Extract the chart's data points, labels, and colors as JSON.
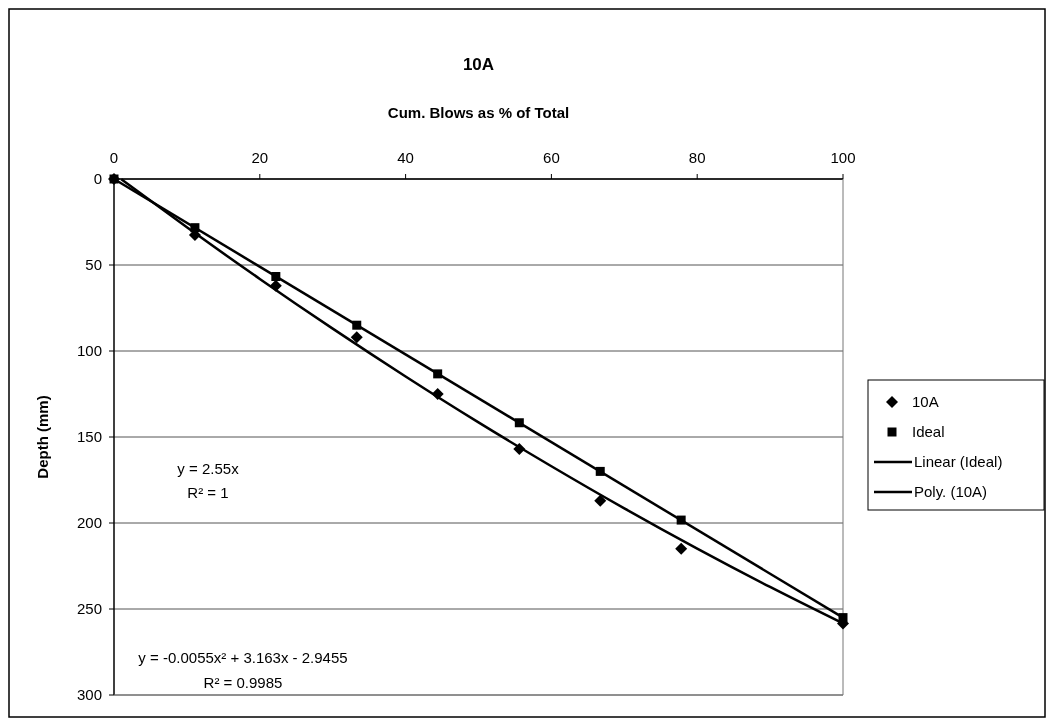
{
  "chart_data": {
    "type": "scatter",
    "title": "10A",
    "xlabel": "Cum. Blows as % of Total",
    "ylabel": "Depth (mm)",
    "xlim": [
      0,
      100
    ],
    "xticks": [
      0,
      20,
      40,
      60,
      80,
      100
    ],
    "ylim": [
      300,
      0
    ],
    "yticks": [
      0,
      50,
      100,
      150,
      200,
      250,
      300
    ],
    "grid": "y",
    "legend": "right",
    "series": [
      {
        "name": "10A",
        "marker": "diamond",
        "color": "#000000",
        "x": [
          0,
          11.1,
          22.2,
          33.3,
          44.4,
          55.6,
          66.7,
          77.8,
          100
        ],
        "values": [
          0,
          32.6,
          62,
          92,
          125,
          157,
          187,
          215,
          258.5
        ]
      },
      {
        "name": "Ideal",
        "marker": "square",
        "color": "#000000",
        "x": [
          0,
          11.1,
          22.2,
          33.3,
          44.4,
          55.6,
          66.7,
          77.8,
          100
        ],
        "values": [
          0,
          28.3,
          56.7,
          85,
          113.3,
          141.7,
          170,
          198.3,
          255
        ]
      },
      {
        "name": "Linear (Ideal)",
        "type": "line",
        "marker": "none",
        "color": "#000000",
        "x": [
          0,
          100
        ],
        "values": [
          0,
          255
        ]
      },
      {
        "name": "Poly. (10A)",
        "type": "line",
        "marker": "none",
        "color": "#000000",
        "x": [
          1,
          10,
          20,
          30,
          40,
          50,
          60,
          70,
          80,
          90,
          100
        ],
        "values": [
          0.2,
          28.1,
          58.1,
          87,
          114.8,
          141.5,
          167,
          191.5,
          214.9,
          237.2,
          258.4
        ]
      }
    ],
    "annotations": [
      "y = 2.55x",
      "R² = 1",
      "y = -0.0055x² + 3.163x - 2.9455",
      "R² = 0.9985"
    ]
  }
}
